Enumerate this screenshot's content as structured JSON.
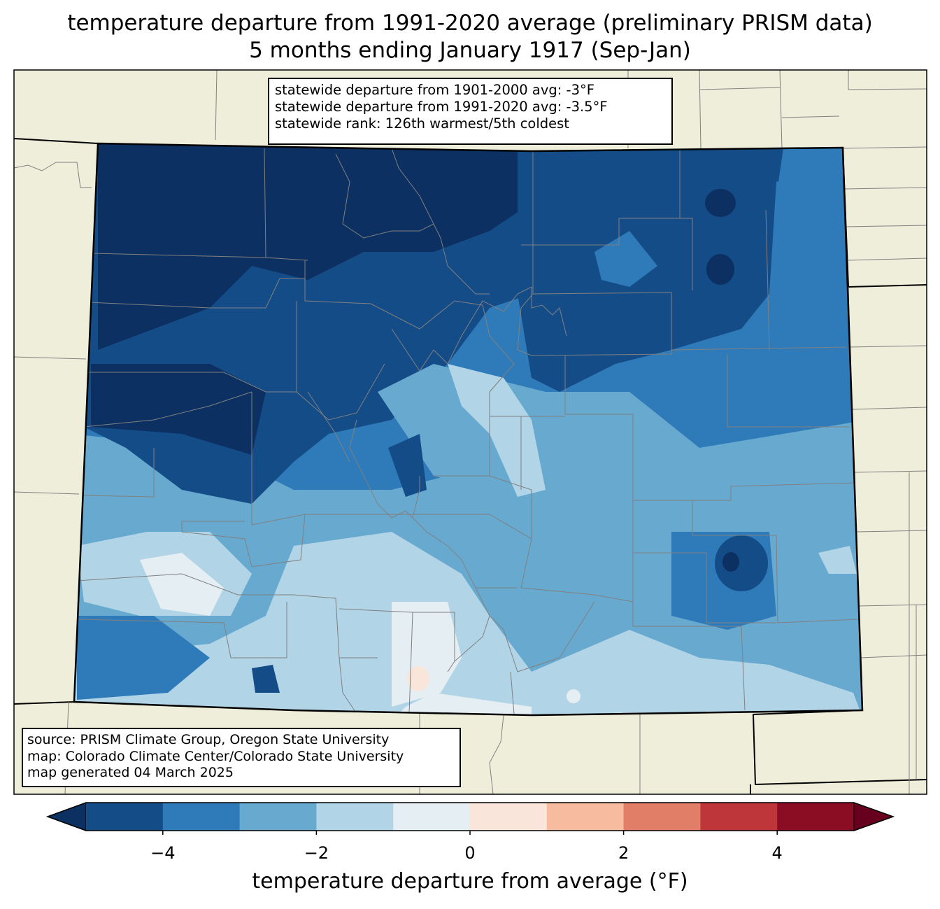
{
  "title": {
    "line1": "temperature departure from 1991-2020 average (preliminary PRISM data)",
    "line2": "5 months ending January 1917 (Sep-Jan)"
  },
  "stats": {
    "line1": "statewide departure from 1901-2000 avg: -3°F",
    "line2": "statewide departure from 1991-2020 avg: -3.5°F",
    "line3": "statewide rank: 126th warmest/5th coldest"
  },
  "credits": {
    "line1": "source: PRISM Climate Group, Oregon State University",
    "line2": "map: Colorado Climate Center/Colorado State University",
    "line3": "map generated 04 March 2025"
  },
  "colorbar": {
    "label": "temperature departure from average (°F)",
    "ticks": [
      "−4",
      "−2",
      "0",
      "2",
      "4"
    ],
    "tick_values": [
      -4,
      -2,
      0,
      2,
      4
    ],
    "range": [
      -5,
      5
    ],
    "bins": [
      {
        "from": -5,
        "to": -4,
        "color": "#144c88"
      },
      {
        "from": -4,
        "to": -3,
        "color": "#2f7bba"
      },
      {
        "from": -3,
        "to": -2,
        "color": "#68a9d0"
      },
      {
        "from": -2,
        "to": -1,
        "color": "#b1d4e7"
      },
      {
        "from": -1,
        "to": 0,
        "color": "#e5eef3"
      },
      {
        "from": 0,
        "to": 1,
        "color": "#f9e5da"
      },
      {
        "from": 1,
        "to": 2,
        "color": "#f7bba0"
      },
      {
        "from": 2,
        "to": 3,
        "color": "#e07e67"
      },
      {
        "from": 3,
        "to": 4,
        "color": "#bf363a"
      },
      {
        "from": 4,
        "to": 5,
        "color": "#8a0d24"
      }
    ],
    "under_color": "#0b3061",
    "over_color": "#67001f"
  },
  "colors": {
    "land": "#efeedb",
    "county_lines": "#808080",
    "state_lines": "#000000"
  }
}
